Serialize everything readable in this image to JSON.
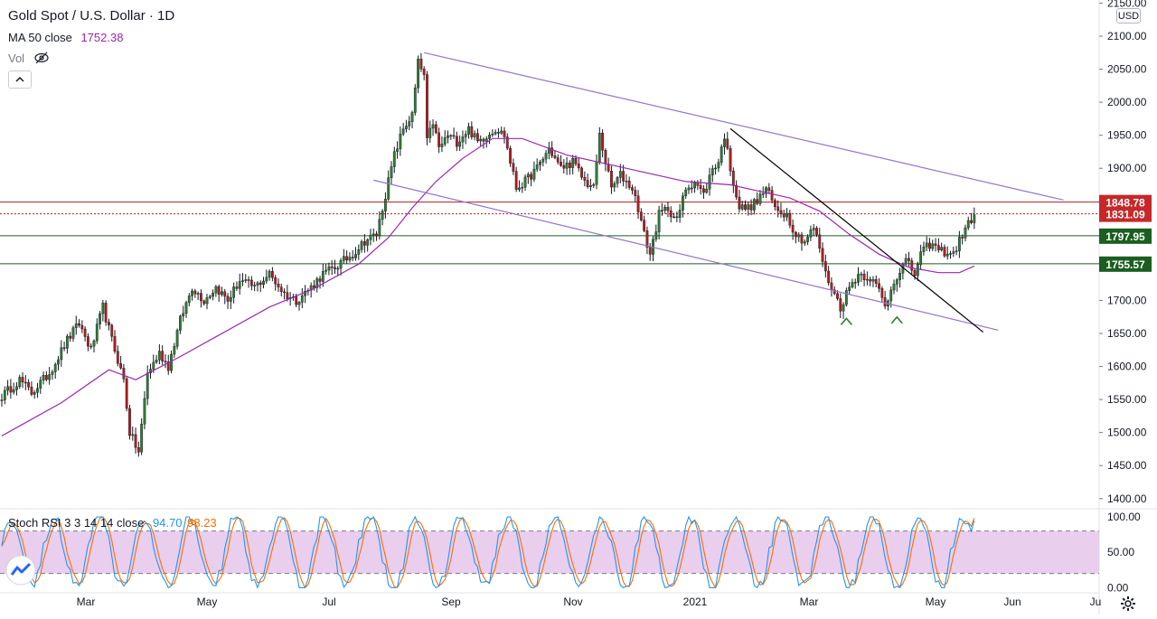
{
  "header": {
    "title": "Gold Spot / U.S. Dollar · 1D",
    "ma_label": "MA 50 close",
    "ma_value": "1752.38",
    "vol_label": "Vol"
  },
  "stoch": {
    "label": "Stoch RSI 3 3 14 14 close",
    "k_value": "94.70",
    "d_value": "98.23"
  },
  "currency": "USD",
  "colors": {
    "up": "#26a69a",
    "down": "#ef5350",
    "candle_up_body": "#2e7d32",
    "candle_down_body": "#b71c1c",
    "ma": "#9c27b0",
    "channel": "#9575cd",
    "trendline": "#000000",
    "red_level": "#b71c1c",
    "green_level": "#1b5e20",
    "stoch_k": "#2196f3",
    "stoch_d": "#ff6d00",
    "stoch_band": "#e1bee7"
  },
  "chart_data": {
    "type": "candlestick",
    "symbol": "Gold Spot / U.S. Dollar",
    "interval": "1D",
    "x_ticks": [
      "Mar",
      "May",
      "Jul",
      "Sep",
      "Nov",
      "2021",
      "Mar",
      "May",
      "Jun",
      "Ju"
    ],
    "y_ticks": [
      1400,
      1450,
      1500,
      1550,
      1600,
      1650,
      1700,
      1750,
      1800,
      1850,
      1900,
      1950,
      2000,
      2050,
      2100,
      2150
    ],
    "ylim": [
      1386,
      2152
    ],
    "price_labels": [
      {
        "text": "1848.78",
        "value": 1848.78,
        "style": "red-solid"
      },
      {
        "text": "1831.09",
        "value": 1831.09,
        "style": "red-dotted"
      },
      {
        "text": "1797.95",
        "value": 1797.95,
        "style": "green"
      },
      {
        "text": "1755.57",
        "value": 1755.57,
        "style": "green"
      }
    ],
    "price_anchors": [
      {
        "day": 0,
        "price": 1555
      },
      {
        "day": 6,
        "price": 1580
      },
      {
        "day": 10,
        "price": 1560
      },
      {
        "day": 16,
        "price": 1590
      },
      {
        "day": 22,
        "price": 1640
      },
      {
        "day": 26,
        "price": 1665
      },
      {
        "day": 30,
        "price": 1625
      },
      {
        "day": 34,
        "price": 1690
      },
      {
        "day": 37,
        "price": 1640
      },
      {
        "day": 41,
        "price": 1580
      },
      {
        "day": 43,
        "price": 1500
      },
      {
        "day": 46,
        "price": 1470
      },
      {
        "day": 49,
        "price": 1590
      },
      {
        "day": 53,
        "price": 1620
      },
      {
        "day": 56,
        "price": 1600
      },
      {
        "day": 60,
        "price": 1670
      },
      {
        "day": 64,
        "price": 1720
      },
      {
        "day": 68,
        "price": 1700
      },
      {
        "day": 72,
        "price": 1720
      },
      {
        "day": 76,
        "price": 1700
      },
      {
        "day": 80,
        "price": 1730
      },
      {
        "day": 85,
        "price": 1720
      },
      {
        "day": 90,
        "price": 1740
      },
      {
        "day": 95,
        "price": 1710
      },
      {
        "day": 99,
        "price": 1700
      },
      {
        "day": 104,
        "price": 1720
      },
      {
        "day": 108,
        "price": 1740
      },
      {
        "day": 112,
        "price": 1750
      },
      {
        "day": 118,
        "price": 1770
      },
      {
        "day": 122,
        "price": 1790
      },
      {
        "day": 126,
        "price": 1800
      },
      {
        "day": 129,
        "price": 1860
      },
      {
        "day": 132,
        "price": 1920
      },
      {
        "day": 135,
        "price": 1960
      },
      {
        "day": 138,
        "price": 1980
      },
      {
        "day": 140,
        "price": 2060
      },
      {
        "day": 142,
        "price": 2040
      },
      {
        "day": 143,
        "price": 1940
      },
      {
        "day": 145,
        "price": 1970
      },
      {
        "day": 147,
        "price": 1930
      },
      {
        "day": 150,
        "price": 1950
      },
      {
        "day": 153,
        "price": 1940
      },
      {
        "day": 157,
        "price": 1960
      },
      {
        "day": 160,
        "price": 1940
      },
      {
        "day": 163,
        "price": 1950
      },
      {
        "day": 166,
        "price": 1960
      },
      {
        "day": 169,
        "price": 1950
      },
      {
        "day": 171,
        "price": 1910
      },
      {
        "day": 173,
        "price": 1870
      },
      {
        "day": 176,
        "price": 1880
      },
      {
        "day": 180,
        "price": 1900
      },
      {
        "day": 184,
        "price": 1930
      },
      {
        "day": 188,
        "price": 1900
      },
      {
        "day": 192,
        "price": 1910
      },
      {
        "day": 196,
        "price": 1880
      },
      {
        "day": 199,
        "price": 1870
      },
      {
        "day": 201,
        "price": 1950
      },
      {
        "day": 203,
        "price": 1910
      },
      {
        "day": 205,
        "price": 1870
      },
      {
        "day": 208,
        "price": 1890
      },
      {
        "day": 212,
        "price": 1870
      },
      {
        "day": 214,
        "price": 1840
      },
      {
        "day": 216,
        "price": 1800
      },
      {
        "day": 218,
        "price": 1770
      },
      {
        "day": 221,
        "price": 1830
      },
      {
        "day": 224,
        "price": 1840
      },
      {
        "day": 227,
        "price": 1820
      },
      {
        "day": 230,
        "price": 1870
      },
      {
        "day": 233,
        "price": 1880
      },
      {
        "day": 236,
        "price": 1860
      },
      {
        "day": 239,
        "price": 1900
      },
      {
        "day": 241,
        "price": 1910
      },
      {
        "day": 243,
        "price": 1950
      },
      {
        "day": 245,
        "price": 1900
      },
      {
        "day": 248,
        "price": 1840
      },
      {
        "day": 251,
        "price": 1840
      },
      {
        "day": 254,
        "price": 1850
      },
      {
        "day": 257,
        "price": 1870
      },
      {
        "day": 260,
        "price": 1840
      },
      {
        "day": 264,
        "price": 1830
      },
      {
        "day": 267,
        "price": 1800
      },
      {
        "day": 270,
        "price": 1790
      },
      {
        "day": 273,
        "price": 1810
      },
      {
        "day": 275,
        "price": 1780
      },
      {
        "day": 277,
        "price": 1740
      },
      {
        "day": 280,
        "price": 1710
      },
      {
        "day": 282,
        "price": 1690
      },
      {
        "day": 285,
        "price": 1720
      },
      {
        "day": 288,
        "price": 1740
      },
      {
        "day": 292,
        "price": 1735
      },
      {
        "day": 295,
        "price": 1715
      },
      {
        "day": 297,
        "price": 1690
      },
      {
        "day": 300,
        "price": 1730
      },
      {
        "day": 304,
        "price": 1760
      },
      {
        "day": 307,
        "price": 1740
      },
      {
        "day": 309,
        "price": 1770
      },
      {
        "day": 312,
        "price": 1785
      },
      {
        "day": 316,
        "price": 1775
      },
      {
        "day": 320,
        "price": 1770
      },
      {
        "day": 323,
        "price": 1800
      },
      {
        "day": 325,
        "price": 1815
      },
      {
        "day": 327,
        "price": 1832
      }
    ],
    "moving_average": {
      "name": "MA 50 close",
      "points": [
        {
          "day": 0,
          "price": 1495
        },
        {
          "day": 20,
          "price": 1545
        },
        {
          "day": 36,
          "price": 1595
        },
        {
          "day": 45,
          "price": 1580
        },
        {
          "day": 60,
          "price": 1615
        },
        {
          "day": 72,
          "price": 1645
        },
        {
          "day": 90,
          "price": 1690
        },
        {
          "day": 105,
          "price": 1718
        },
        {
          "day": 120,
          "price": 1755
        },
        {
          "day": 130,
          "price": 1795
        },
        {
          "day": 138,
          "price": 1840
        },
        {
          "day": 146,
          "price": 1880
        },
        {
          "day": 155,
          "price": 1915
        },
        {
          "day": 165,
          "price": 1945
        },
        {
          "day": 175,
          "price": 1945
        },
        {
          "day": 190,
          "price": 1920
        },
        {
          "day": 205,
          "price": 1905
        },
        {
          "day": 215,
          "price": 1895
        },
        {
          "day": 230,
          "price": 1880
        },
        {
          "day": 245,
          "price": 1875
        },
        {
          "day": 255,
          "price": 1865
        },
        {
          "day": 265,
          "price": 1855
        },
        {
          "day": 275,
          "price": 1835
        },
        {
          "day": 285,
          "price": 1800
        },
        {
          "day": 295,
          "price": 1770
        },
        {
          "day": 305,
          "price": 1750
        },
        {
          "day": 315,
          "price": 1742
        },
        {
          "day": 322,
          "price": 1742
        },
        {
          "day": 327,
          "price": 1752
        }
      ]
    },
    "drawings": {
      "channel_upper": [
        {
          "day": 142,
          "price": 2075
        },
        {
          "day": 357,
          "price": 1852
        }
      ],
      "channel_lower": [
        {
          "day": 125,
          "price": 1882
        },
        {
          "day": 335,
          "price": 1655
        }
      ],
      "trendline": [
        {
          "day": 245,
          "price": 1960
        },
        {
          "day": 330,
          "price": 1652
        }
      ],
      "markers": [
        {
          "day": 284,
          "price": 1670
        },
        {
          "day": 301,
          "price": 1672
        }
      ]
    },
    "stoch_rsi": {
      "name": "Stoch RSI 3 3 14 14 close",
      "k_last": 94.7,
      "d_last": 98.23,
      "ylim": [
        0,
        100
      ],
      "band": [
        20,
        80
      ],
      "y_ticks": [
        "100.00",
        "50.00",
        "0.00"
      ]
    }
  }
}
